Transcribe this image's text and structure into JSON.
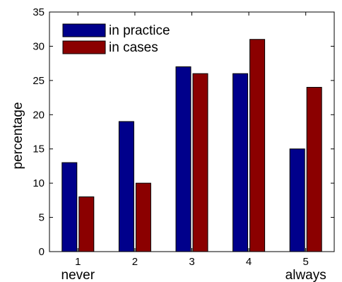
{
  "chart_data": {
    "type": "bar",
    "categories": [
      "1",
      "2",
      "3",
      "4",
      "5"
    ],
    "category_sublabels": [
      "never",
      "",
      "",
      "",
      "always"
    ],
    "ylabel": "percentage",
    "xlabel": "",
    "ylim": [
      0,
      35
    ],
    "yticks": [
      0,
      5,
      10,
      15,
      20,
      25,
      30,
      35
    ],
    "grid": false,
    "legend_position": "top-left",
    "series": [
      {
        "name": "in practice",
        "color": "#00008b",
        "values": [
          13,
          19,
          27,
          26,
          15
        ]
      },
      {
        "name": "in cases",
        "color": "#8b0000",
        "values": [
          8,
          10,
          26,
          31,
          24
        ]
      }
    ]
  }
}
